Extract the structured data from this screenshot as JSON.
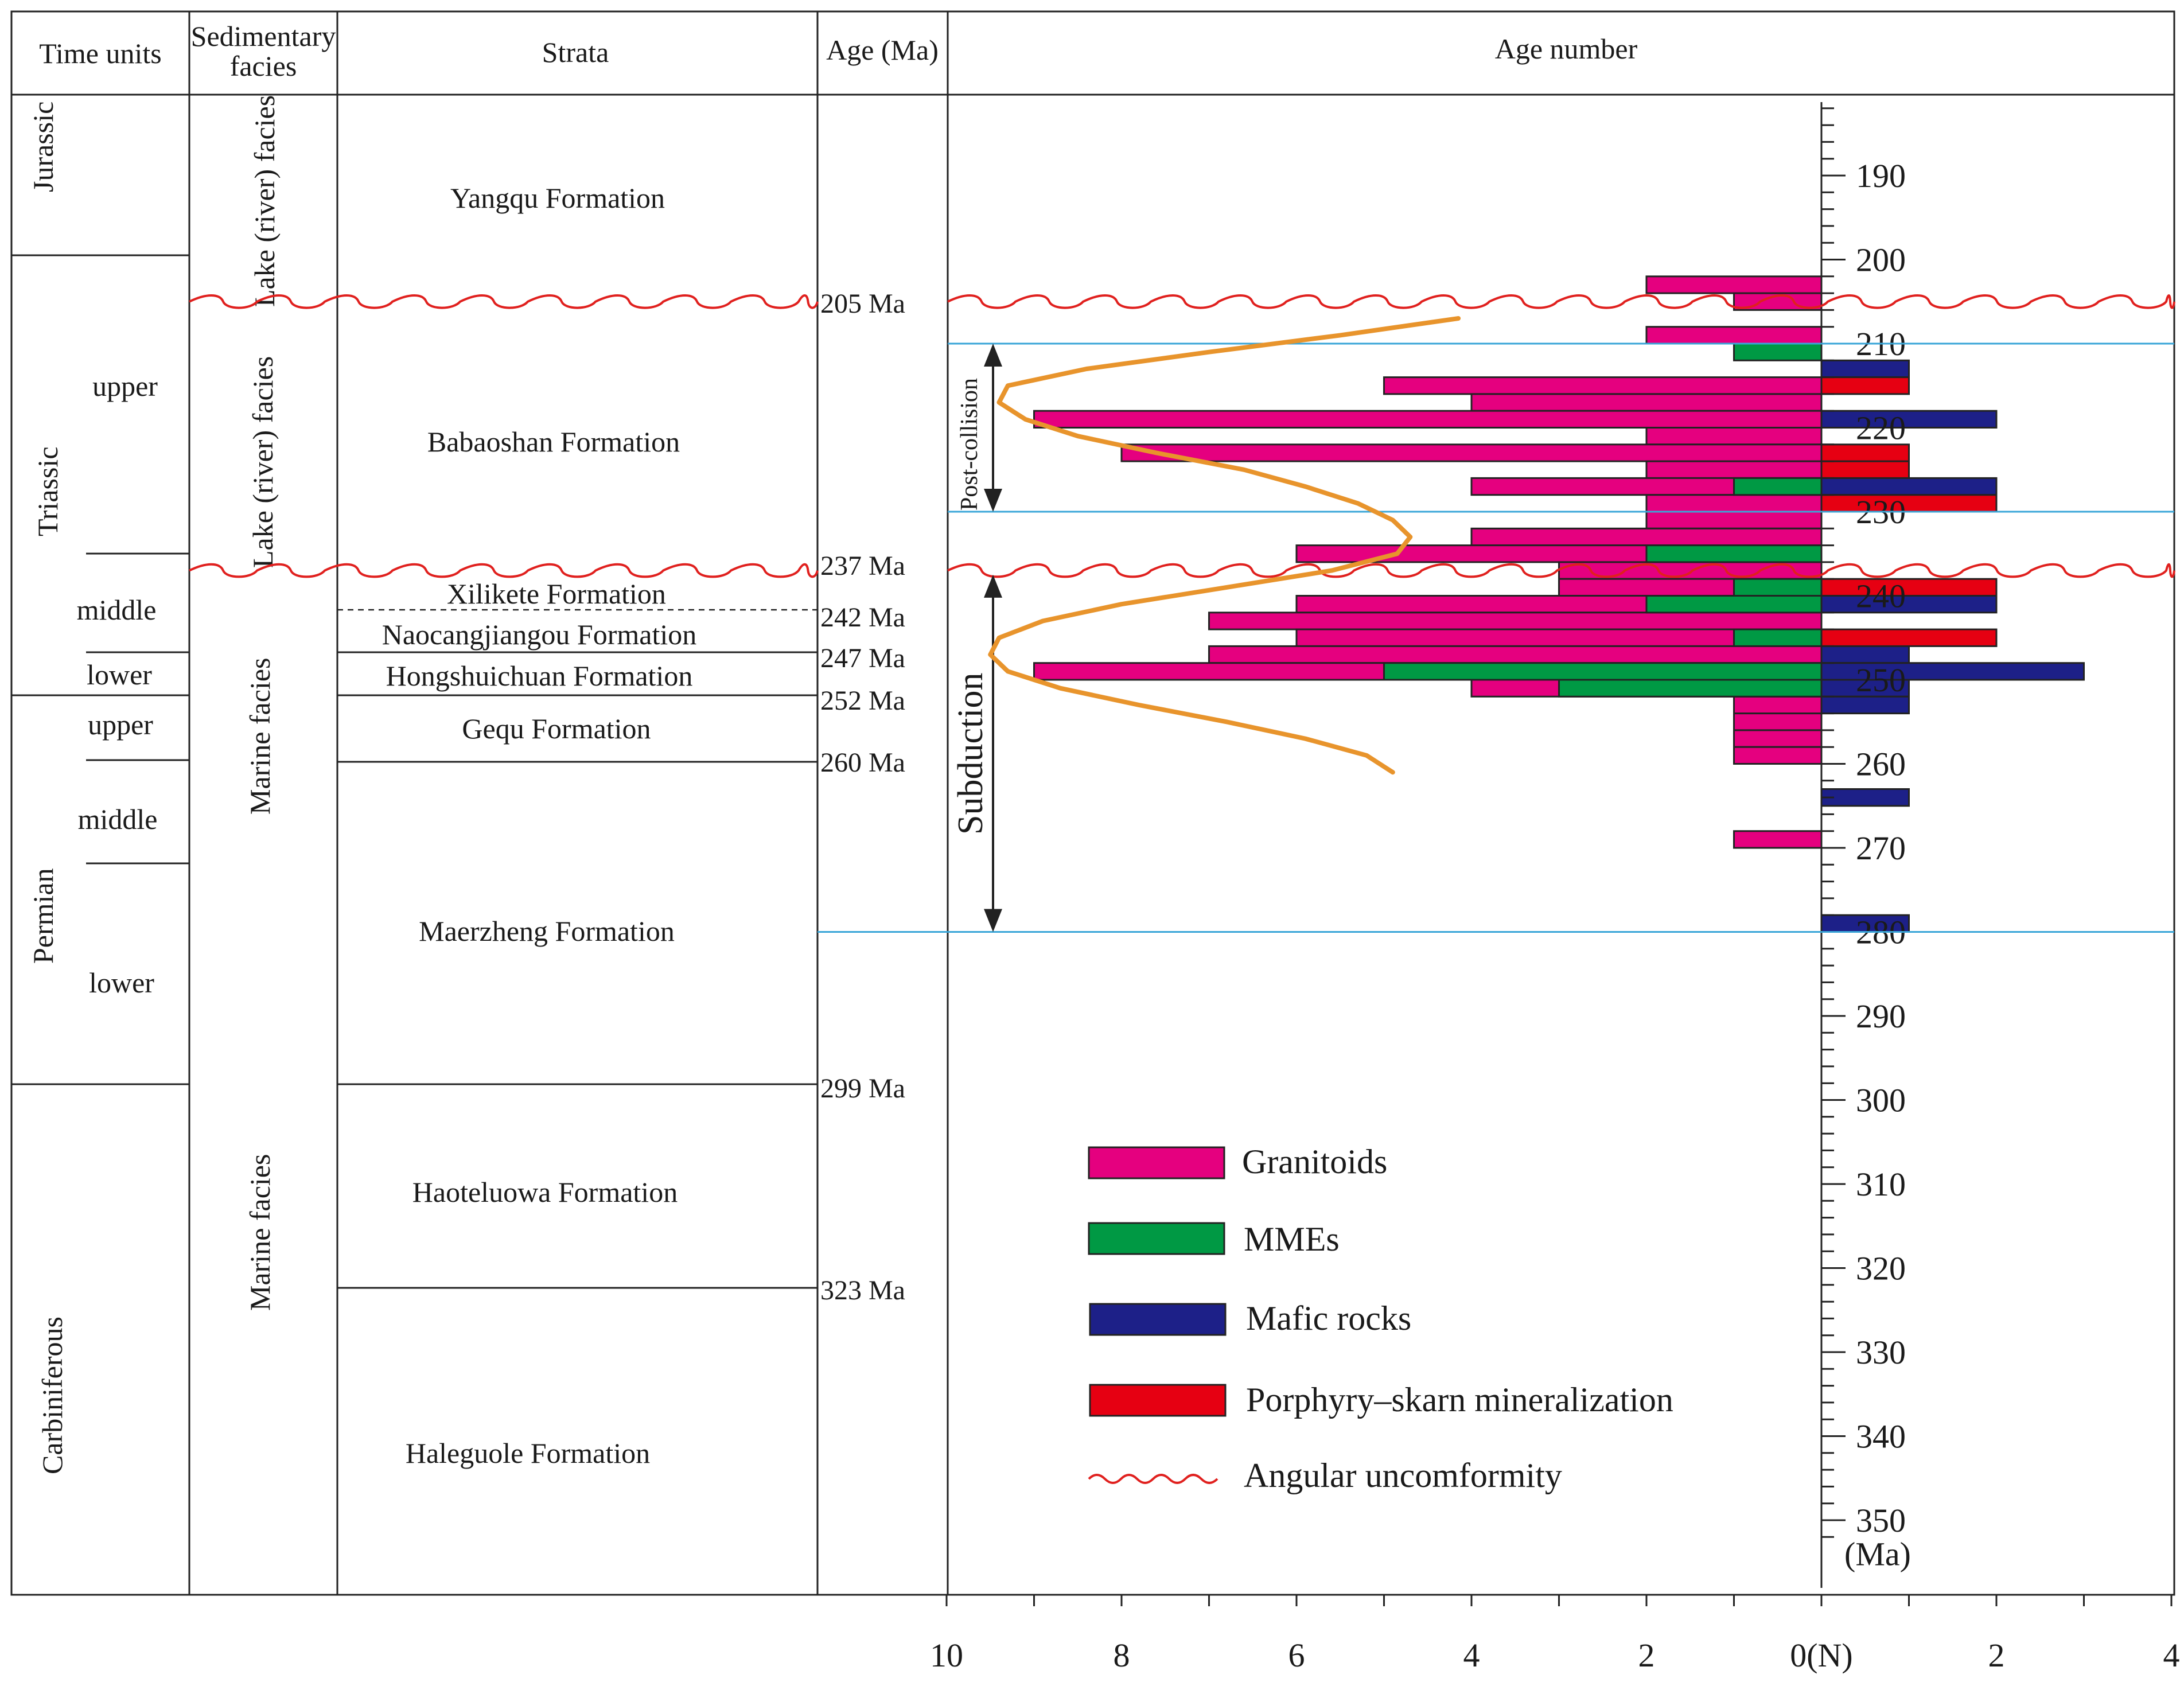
{
  "headers": {
    "time_units": "Time units",
    "sed_line1": "Sedimentary",
    "sed_line2": "facies",
    "strata": "Strata",
    "age": "Age (Ma)",
    "age_number": "Age number"
  },
  "periods": [
    "Jurassic",
    "Triassic",
    "Permian",
    "Carbiniferous"
  ],
  "epochs": [
    "upper",
    "middle",
    "lower",
    "upper",
    "middle",
    "lower"
  ],
  "facies": [
    "Lake (river) facies",
    "Lake (river) facies",
    "Marine  facies",
    "Marine  facies"
  ],
  "formations": [
    "Yangqu Formation",
    "Babaoshan Formation",
    "Xilikete Formation",
    "Naocangjiangou Formation",
    "Hongshuichuan Formation",
    "Gequ Formation",
    "Maerzheng Formation",
    "Haoteluowa Formation",
    "Haleguole Formation"
  ],
  "age_labels": [
    "205 Ma",
    "237 Ma",
    "242 Ma",
    "247 Ma",
    "252 Ma",
    "260 Ma",
    "299 Ma",
    "323 Ma"
  ],
  "stage_labels": {
    "post_collision": "Post-collision",
    "subduction": "Subduction"
  },
  "legend": {
    "granitoids": "Granitoids",
    "mmes": "MMEs",
    "mafic": "Mafic rocks",
    "porphyry": "Porphyry–skarn mineralization",
    "uncomformity": "Angular uncomformity"
  },
  "colors": {
    "granitoids": "#e5007f",
    "mmes": "#009944",
    "mafic": "#1d2088",
    "porphyry": "#e60012",
    "uncomformity": "#e0201e",
    "trend_curve": "#e8942c",
    "stage_lines": "#3aa6d8"
  },
  "chart_data": {
    "type": "bar",
    "orientation": "horizontal",
    "y_axis_label": "(Ma)",
    "y_ticks": [
      190,
      200,
      210,
      220,
      230,
      240,
      250,
      260,
      270,
      280,
      290,
      300,
      310,
      320,
      330,
      340,
      350
    ],
    "highlighted_ticks": [
      240,
      250,
      280
    ],
    "ylim": [
      180,
      355
    ],
    "x_tick_labels": [
      "10",
      "8",
      "6",
      "4",
      "2",
      "0(N)",
      "2",
      "4"
    ],
    "xlim_left": 10,
    "xlim_right": 4,
    "bin_width": 2,
    "series": [
      {
        "name": "Granitoids",
        "side": "left",
        "bins": [
          {
            "age": 203,
            "count": 2
          },
          {
            "age": 205,
            "count": 1
          },
          {
            "age": 209,
            "count": 2
          },
          {
            "age": 215,
            "count": 5
          },
          {
            "age": 217,
            "count": 4
          },
          {
            "age": 219,
            "count": 9
          },
          {
            "age": 221,
            "count": 2
          },
          {
            "age": 223,
            "count": 8
          },
          {
            "age": 225,
            "count": 2
          },
          {
            "age": 227,
            "count": 4
          },
          {
            "age": 229,
            "count": 2
          },
          {
            "age": 231,
            "count": 2
          },
          {
            "age": 233,
            "count": 4
          },
          {
            "age": 235,
            "count": 6
          },
          {
            "age": 237,
            "count": 3
          },
          {
            "age": 239,
            "count": 3
          },
          {
            "age": 241,
            "count": 6
          },
          {
            "age": 243,
            "count": 7
          },
          {
            "age": 245,
            "count": 6
          },
          {
            "age": 247,
            "count": 7
          },
          {
            "age": 249,
            "count": 9
          },
          {
            "age": 251,
            "count": 4
          },
          {
            "age": 253,
            "count": 1
          },
          {
            "age": 255,
            "count": 1
          },
          {
            "age": 257,
            "count": 1
          },
          {
            "age": 259,
            "count": 1
          },
          {
            "age": 269,
            "count": 1
          }
        ]
      },
      {
        "name": "MMEs",
        "side": "left",
        "bins": [
          {
            "age": 211,
            "count": 1
          },
          {
            "age": 227,
            "count": 1
          },
          {
            "age": 235,
            "count": 2
          },
          {
            "age": 239,
            "count": 1
          },
          {
            "age": 241,
            "count": 2
          },
          {
            "age": 245,
            "count": 1
          },
          {
            "age": 249,
            "count": 5
          },
          {
            "age": 251,
            "count": 3
          }
        ]
      },
      {
        "name": "Mafic rocks",
        "side": "right",
        "bins": [
          {
            "age": 213,
            "count": 1
          },
          {
            "age": 219,
            "count": 2
          },
          {
            "age": 227,
            "count": 2
          },
          {
            "age": 241,
            "count": 2
          },
          {
            "age": 247,
            "count": 1
          },
          {
            "age": 249,
            "count": 3
          },
          {
            "age": 251,
            "count": 1
          },
          {
            "age": 253,
            "count": 1
          },
          {
            "age": 264,
            "count": 1
          },
          {
            "age": 279,
            "count": 1
          }
        ]
      },
      {
        "name": "Porphyry–skarn mineralization",
        "side": "right",
        "bins": [
          {
            "age": 215,
            "count": 1
          },
          {
            "age": 223,
            "count": 1
          },
          {
            "age": 225,
            "count": 1
          },
          {
            "age": 229,
            "count": 2
          },
          {
            "age": 239,
            "count": 2
          },
          {
            "age": 245,
            "count": 2
          }
        ]
      }
    ],
    "stage_boundaries_ma": [
      210,
      230,
      280
    ],
    "uncomformities_ma": [
      205,
      237
    ]
  }
}
